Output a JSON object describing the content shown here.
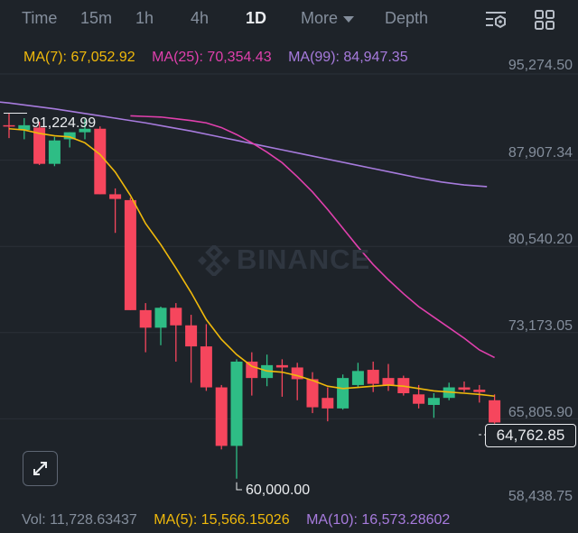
{
  "tabs": {
    "time": "Time",
    "t15m": "15m",
    "t1h": "1h",
    "t4h": "4h",
    "t1d": "1D",
    "more": "More",
    "depth": "Depth"
  },
  "ma_legend": {
    "ma7": "MA(7): 67,052.92",
    "ma25": "MA(25): 70,354.43",
    "ma99": "MA(99): 84,947.35"
  },
  "y_axis": [
    "95,274.50",
    "87,907.34",
    "80,540.20",
    "73,173.05",
    "65,805.90",
    "58,438.75"
  ],
  "current_price": "64,762.85",
  "annotations": {
    "high": "91,224.99",
    "low": "60,000.00"
  },
  "watermark": "BINANCE",
  "volume_legend": {
    "vol": "Vol: 11,728.63437",
    "ma5": "MA(5): 15,566.15026",
    "ma10": "MA(10): 16,573.28602"
  },
  "colors": {
    "up": "#2ebd85",
    "down": "#f6465d",
    "ma7": "#f0b90b",
    "ma25": "#e040ad",
    "ma99": "#a77bdd",
    "background": "#1e2329"
  },
  "icons": {
    "settings": "chart-settings-icon",
    "layout": "grid-layout-icon",
    "expand": "expand-arrows-icon",
    "more": "chevron-down-icon"
  },
  "chart_data": {
    "type": "candlestick",
    "ylim": [
      58438.75,
      95274.5
    ],
    "candles": [
      {
        "o": 90200,
        "h": 91225,
        "l": 89100,
        "c": 90100
      },
      {
        "o": 89800,
        "h": 90800,
        "l": 89000,
        "c": 90200
      },
      {
        "o": 90000,
        "h": 90500,
        "l": 86800,
        "c": 86900
      },
      {
        "o": 86900,
        "h": 89200,
        "l": 86700,
        "c": 88900
      },
      {
        "o": 89000,
        "h": 89600,
        "l": 88300,
        "c": 89600
      },
      {
        "o": 89600,
        "h": 90700,
        "l": 89000,
        "c": 89900
      },
      {
        "o": 89900,
        "h": 90100,
        "l": 84300,
        "c": 84300
      },
      {
        "o": 84300,
        "h": 84800,
        "l": 81000,
        "c": 83900
      },
      {
        "o": 83800,
        "h": 84000,
        "l": 74400,
        "c": 74400
      },
      {
        "o": 74400,
        "h": 75000,
        "l": 70800,
        "c": 72900
      },
      {
        "o": 72900,
        "h": 74700,
        "l": 71400,
        "c": 74600
      },
      {
        "o": 74600,
        "h": 75000,
        "l": 70000,
        "c": 73100
      },
      {
        "o": 73100,
        "h": 74000,
        "l": 68200,
        "c": 71300
      },
      {
        "o": 71300,
        "h": 73200,
        "l": 67500,
        "c": 67800
      },
      {
        "o": 67800,
        "h": 68000,
        "l": 62500,
        "c": 62800
      },
      {
        "o": 62800,
        "h": 70200,
        "l": 60000,
        "c": 70000
      },
      {
        "o": 70000,
        "h": 70800,
        "l": 67100,
        "c": 68600
      },
      {
        "o": 68600,
        "h": 70600,
        "l": 67900,
        "c": 69700
      },
      {
        "o": 69700,
        "h": 70200,
        "l": 67000,
        "c": 69500
      },
      {
        "o": 69500,
        "h": 69900,
        "l": 66700,
        "c": 68500
      },
      {
        "o": 68500,
        "h": 69100,
        "l": 65600,
        "c": 66100
      },
      {
        "o": 66900,
        "h": 67800,
        "l": 64900,
        "c": 66000
      },
      {
        "o": 66000,
        "h": 68900,
        "l": 65900,
        "c": 68600
      },
      {
        "o": 68000,
        "h": 69900,
        "l": 67800,
        "c": 69200
      },
      {
        "o": 69300,
        "h": 70000,
        "l": 67400,
        "c": 68100
      },
      {
        "o": 68600,
        "h": 69800,
        "l": 67500,
        "c": 68000
      },
      {
        "o": 68600,
        "h": 68800,
        "l": 67100,
        "c": 67300
      },
      {
        "o": 67200,
        "h": 68000,
        "l": 66000,
        "c": 66400
      },
      {
        "o": 66300,
        "h": 67300,
        "l": 65200,
        "c": 66900
      },
      {
        "o": 66900,
        "h": 68200,
        "l": 66700,
        "c": 67800
      },
      {
        "o": 67800,
        "h": 68300,
        "l": 67400,
        "c": 67600
      },
      {
        "o": 67600,
        "h": 68000,
        "l": 66500,
        "c": 67400
      },
      {
        "o": 66700,
        "h": 67200,
        "l": 64700,
        "c": 64800
      }
    ],
    "ma7": [
      89900,
      89800,
      89500,
      89300,
      89200,
      88700,
      87700,
      86200,
      84200,
      81800,
      80000,
      78000,
      75900,
      73600,
      71900,
      70600,
      69600,
      69200,
      69100,
      68800,
      68400,
      67900,
      67700,
      67800,
      67900,
      68000,
      67900,
      67700,
      67500,
      67400,
      67300,
      67200,
      67050
    ],
    "ma25": [
      91000,
      90950,
      90900,
      90750,
      90600,
      90400,
      90000,
      89400,
      88700,
      87900,
      87000,
      85800,
      84500,
      83000,
      81400,
      79800,
      78300,
      77000,
      75800,
      74700,
      73800,
      72900,
      72000,
      71000,
      70350
    ],
    "ma25_start": 8,
    "ma99": [
      92500,
      92300,
      92100,
      91850,
      91600,
      91300,
      91000,
      90700,
      90400,
      90050,
      89700,
      89300,
      88900,
      88500,
      88100,
      87700,
      87300,
      86900,
      86500,
      86100,
      85700,
      85350,
      85100,
      84950
    ],
    "ma99_start": -3,
    "ma99_step": 1.5
  }
}
